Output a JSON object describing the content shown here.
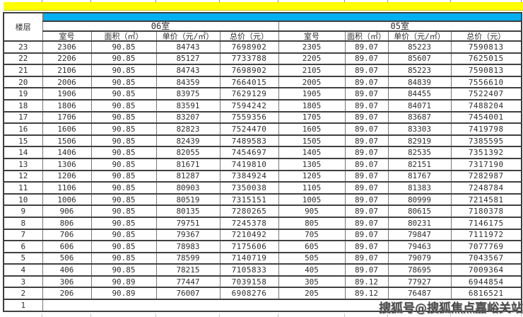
{
  "colors": {
    "banner": "#ffff00",
    "band": "#00b0f0",
    "total_text": "#ee0000"
  },
  "header": {
    "floor_label": "楼层",
    "sections": [
      {
        "title": "06室",
        "columns": [
          "室号",
          "面积（㎡）",
          "单价（元/㎡）",
          "总价（元）"
        ]
      },
      {
        "title": "05室",
        "columns": [
          "室号",
          "面积（㎡）",
          "单价（元/㎡）",
          "总价（元）"
        ]
      }
    ]
  },
  "table": {
    "rows": [
      [
        "23",
        "2306",
        "90.85",
        "84743",
        "7698902",
        "2305",
        "89.07",
        "85223",
        "7590813"
      ],
      [
        "22",
        "2206",
        "90.85",
        "85127",
        "7733788",
        "2205",
        "89.07",
        "85607",
        "7625015"
      ],
      [
        "21",
        "2106",
        "90.85",
        "84743",
        "7698902",
        "2105",
        "89.07",
        "85223",
        "7590813"
      ],
      [
        "20",
        "2006",
        "90.85",
        "84359",
        "7664015",
        "2005",
        "89.07",
        "84839",
        "7556610"
      ],
      [
        "19",
        "1906",
        "90.85",
        "83975",
        "7629129",
        "1905",
        "89.07",
        "84455",
        "7522407"
      ],
      [
        "18",
        "1806",
        "90.85",
        "83591",
        "7594242",
        "1805",
        "89.07",
        "84071",
        "7488204"
      ],
      [
        "17",
        "1706",
        "90.85",
        "83207",
        "7559356",
        "1705",
        "89.07",
        "83687",
        "7454001"
      ],
      [
        "16",
        "1606",
        "90.85",
        "82823",
        "7524470",
        "1605",
        "89.07",
        "83303",
        "7419798"
      ],
      [
        "15",
        "1506",
        "90.85",
        "82439",
        "7489583",
        "1505",
        "89.07",
        "82919",
        "7385595"
      ],
      [
        "14",
        "1406",
        "90.85",
        "82055",
        "7454697",
        "1405",
        "89.07",
        "82535",
        "7351392"
      ],
      [
        "13",
        "1306",
        "90.85",
        "81671",
        "7419810",
        "1305",
        "89.07",
        "82151",
        "7317190"
      ],
      [
        "12",
        "1206",
        "90.85",
        "81287",
        "7384924",
        "1205",
        "89.07",
        "81767",
        "7282987"
      ],
      [
        "11",
        "1106",
        "90.85",
        "80903",
        "7350038",
        "1105",
        "89.07",
        "81383",
        "7248784"
      ],
      [
        "10",
        "1006",
        "90.85",
        "80519",
        "7315151",
        "1005",
        "89.07",
        "80999",
        "7214581"
      ],
      [
        "9",
        "906",
        "90.85",
        "80135",
        "7280265",
        "905",
        "89.07",
        "80615",
        "7180378"
      ],
      [
        "8",
        "806",
        "90.85",
        "79751",
        "7245378",
        "805",
        "89.07",
        "80231",
        "7146175"
      ],
      [
        "7",
        "706",
        "90.85",
        "79367",
        "7210492",
        "705",
        "89.07",
        "79847",
        "7111972"
      ],
      [
        "6",
        "606",
        "90.85",
        "78983",
        "7175606",
        "605",
        "89.07",
        "79463",
        "7077769"
      ],
      [
        "5",
        "506",
        "90.85",
        "78599",
        "7140719",
        "505",
        "89.07",
        "79079",
        "7043567"
      ],
      [
        "4",
        "406",
        "90.85",
        "78215",
        "7105833",
        "405",
        "89.07",
        "78695",
        "7009364"
      ],
      [
        "3",
        "306",
        "90.89",
        "77447",
        "7039158",
        "305",
        "89.12",
        "77927",
        "6944854"
      ],
      [
        "2",
        "206",
        "90.89",
        "76007",
        "6908276",
        "205",
        "89.12",
        "76487",
        "6816521"
      ]
    ],
    "empty_floor": "1"
  },
  "watermark": {
    "text": "搜狐号@搜狐焦点嘉峪关站"
  }
}
